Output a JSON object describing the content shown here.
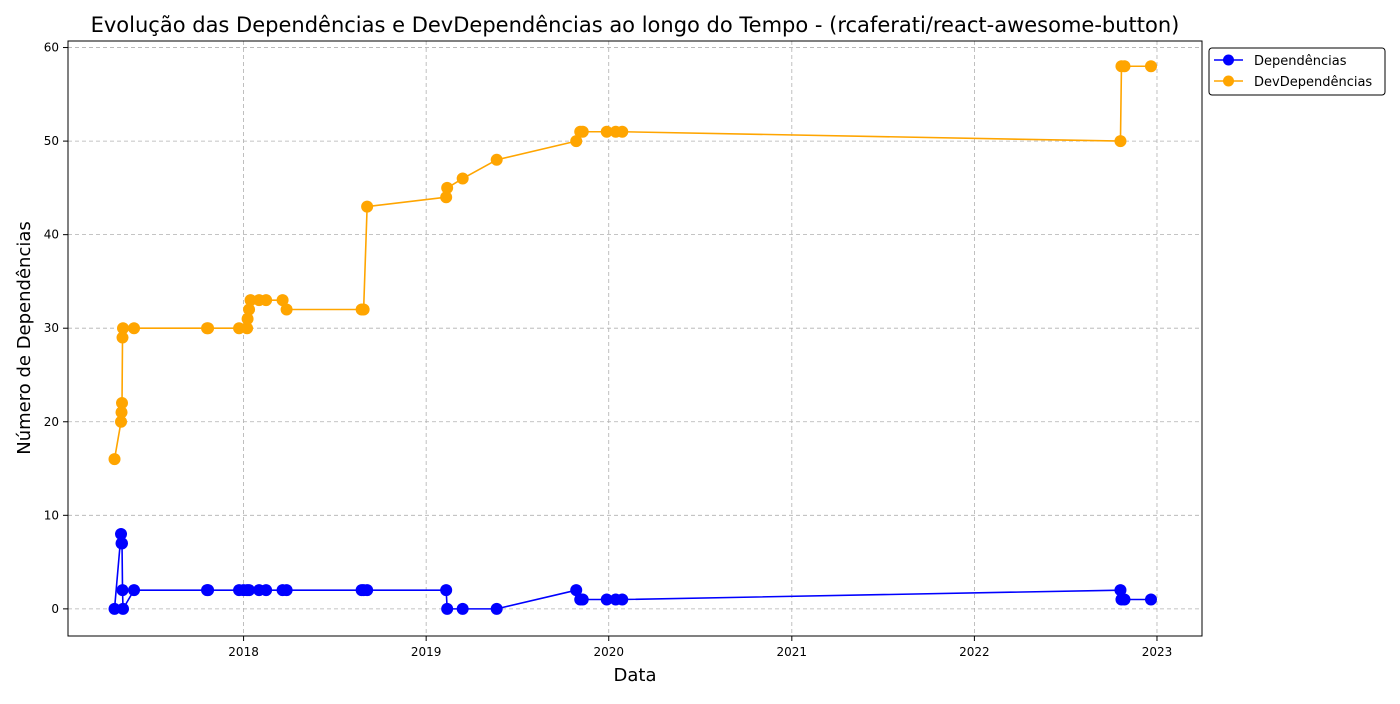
{
  "chart_data": {
    "type": "line",
    "title": "Evolução das Dependências e DevDependências ao longo do Tempo - (rcaferati/react-awesome-button)",
    "xlabel": "Data",
    "ylabel": "Número de Dependências",
    "xlim": [
      "2017-01-15",
      "2023-04-01"
    ],
    "ylim": [
      -2.9,
      60.7
    ],
    "x_ticks": [
      "2018-01-01",
      "2019-01-01",
      "2020-01-01",
      "2021-01-01",
      "2022-01-01",
      "2023-01-01"
    ],
    "x_tick_labels": [
      "2018",
      "2019",
      "2020",
      "2021",
      "2022",
      "2023"
    ],
    "y_ticks": [
      0,
      10,
      20,
      30,
      40,
      50,
      60
    ],
    "y_tick_labels": [
      "0",
      "10",
      "20",
      "30",
      "40",
      "50",
      "60"
    ],
    "grid": true,
    "legend_position": "outside-top-right",
    "series": [
      {
        "name": "Dependências",
        "color": "#0000ff",
        "points": [
          [
            "2017-04-18",
            0
          ],
          [
            "2017-05-01",
            8
          ],
          [
            "2017-05-02",
            7
          ],
          [
            "2017-05-03",
            7
          ],
          [
            "2017-05-04",
            2
          ],
          [
            "2017-05-05",
            0
          ],
          [
            "2017-05-27",
            2
          ],
          [
            "2017-10-20",
            2
          ],
          [
            "2017-10-22",
            2
          ],
          [
            "2017-12-23",
            2
          ],
          [
            "2018-01-01",
            2
          ],
          [
            "2018-01-08",
            2
          ],
          [
            "2018-01-12",
            2
          ],
          [
            "2018-02-01",
            2
          ],
          [
            "2018-02-15",
            2
          ],
          [
            "2018-03-20",
            2
          ],
          [
            "2018-03-28",
            2
          ],
          [
            "2018-08-25",
            2
          ],
          [
            "2018-08-29",
            2
          ],
          [
            "2018-09-05",
            2
          ],
          [
            "2019-02-10",
            2
          ],
          [
            "2019-02-12",
            0
          ],
          [
            "2019-03-15",
            0
          ],
          [
            "2019-05-22",
            0
          ],
          [
            "2019-10-28",
            2
          ],
          [
            "2019-11-05",
            1
          ],
          [
            "2019-11-10",
            1
          ],
          [
            "2019-12-28",
            1
          ],
          [
            "2020-01-15",
            1
          ],
          [
            "2020-01-28",
            1
          ],
          [
            "2022-10-20",
            2
          ],
          [
            "2022-10-22",
            1
          ],
          [
            "2022-10-28",
            1
          ],
          [
            "2022-12-20",
            1
          ]
        ]
      },
      {
        "name": "DevDependências",
        "color": "#ffa500",
        "points": [
          [
            "2017-04-18",
            16
          ],
          [
            "2017-05-01",
            20
          ],
          [
            "2017-05-02",
            21
          ],
          [
            "2017-05-03",
            22
          ],
          [
            "2017-05-04",
            29
          ],
          [
            "2017-05-05",
            30
          ],
          [
            "2017-05-27",
            30
          ],
          [
            "2017-10-20",
            30
          ],
          [
            "2017-10-22",
            30
          ],
          [
            "2017-12-23",
            30
          ],
          [
            "2018-01-08",
            30
          ],
          [
            "2018-01-09",
            31
          ],
          [
            "2018-01-12",
            32
          ],
          [
            "2018-01-15",
            33
          ],
          [
            "2018-02-01",
            33
          ],
          [
            "2018-02-15",
            33
          ],
          [
            "2018-03-20",
            33
          ],
          [
            "2018-03-28",
            32
          ],
          [
            "2018-08-25",
            32
          ],
          [
            "2018-08-29",
            32
          ],
          [
            "2018-09-05",
            43
          ],
          [
            "2019-02-10",
            44
          ],
          [
            "2019-02-12",
            45
          ],
          [
            "2019-03-15",
            46
          ],
          [
            "2019-05-22",
            48
          ],
          [
            "2019-10-28",
            50
          ],
          [
            "2019-11-05",
            51
          ],
          [
            "2019-11-10",
            51
          ],
          [
            "2019-12-28",
            51
          ],
          [
            "2020-01-15",
            51
          ],
          [
            "2020-01-28",
            51
          ],
          [
            "2022-10-20",
            50
          ],
          [
            "2022-10-22",
            58
          ],
          [
            "2022-10-28",
            58
          ],
          [
            "2022-12-20",
            58
          ]
        ]
      }
    ]
  }
}
